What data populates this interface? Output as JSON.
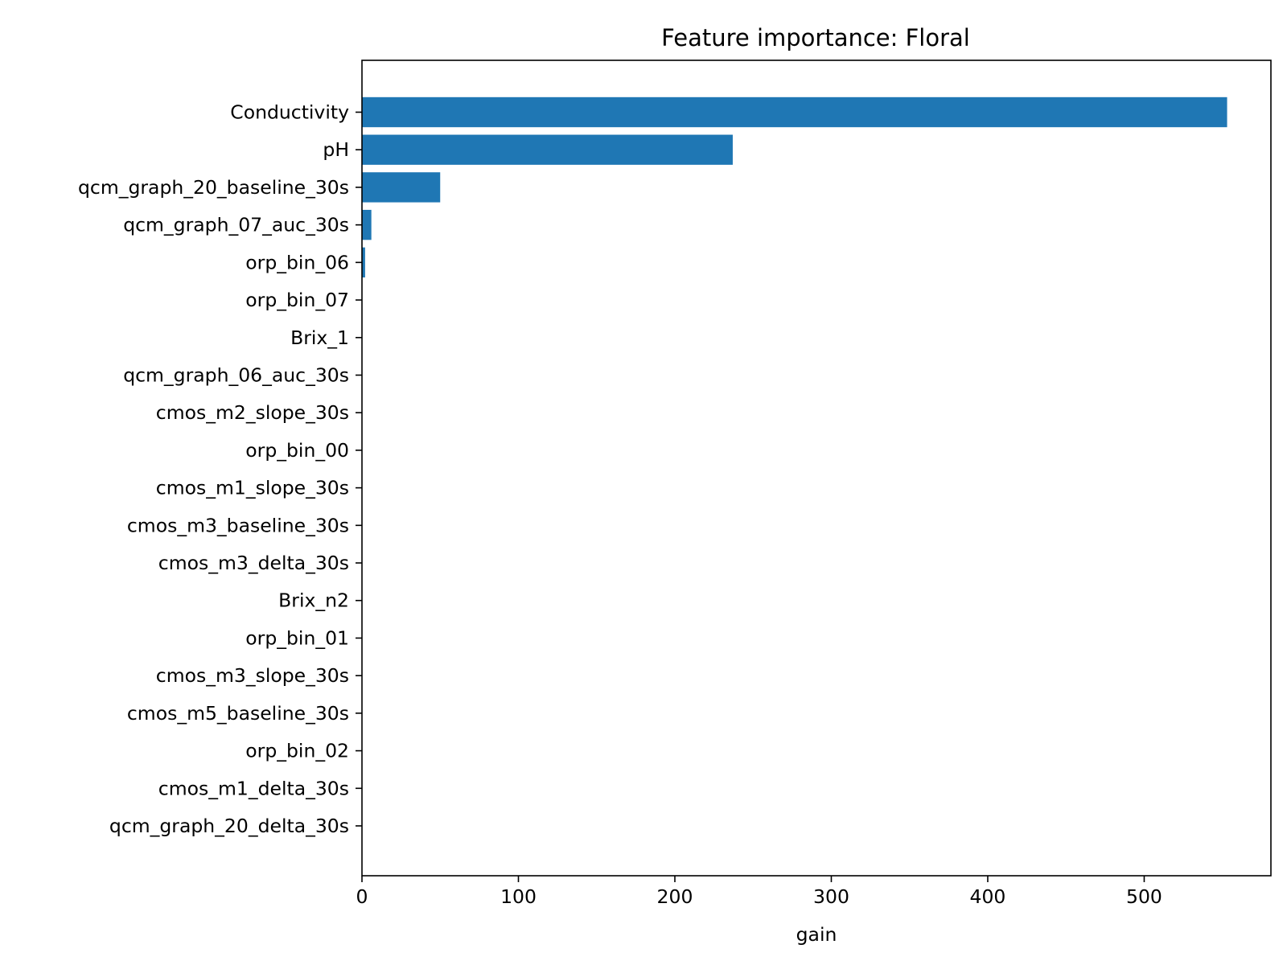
{
  "chart_data": {
    "type": "bar",
    "orientation": "horizontal",
    "title": "Feature importance: Floral",
    "xlabel": "gain",
    "ylabel": "",
    "xlim": [
      0,
      581
    ],
    "xticks": [
      0,
      100,
      200,
      300,
      400,
      500
    ],
    "grid": false,
    "color": "#1f77b4",
    "categories": [
      "Conductivity",
      "pH",
      "qcm_graph_20_baseline_30s",
      "qcm_graph_07_auc_30s",
      "orp_bin_06",
      "orp_bin_07",
      "Brix_1",
      "qcm_graph_06_auc_30s",
      "cmos_m2_slope_30s",
      "orp_bin_00",
      "cmos_m1_slope_30s",
      "cmos_m3_baseline_30s",
      "cmos_m3_delta_30s",
      "Brix_n2",
      "orp_bin_01",
      "cmos_m3_slope_30s",
      "cmos_m5_baseline_30s",
      "orp_bin_02",
      "cmos_m1_delta_30s",
      "qcm_graph_20_delta_30s"
    ],
    "values": [
      553,
      237,
      50,
      6,
      2,
      0,
      0,
      0,
      0,
      0,
      0,
      0,
      0,
      0,
      0,
      0,
      0,
      0,
      0,
      0
    ]
  }
}
